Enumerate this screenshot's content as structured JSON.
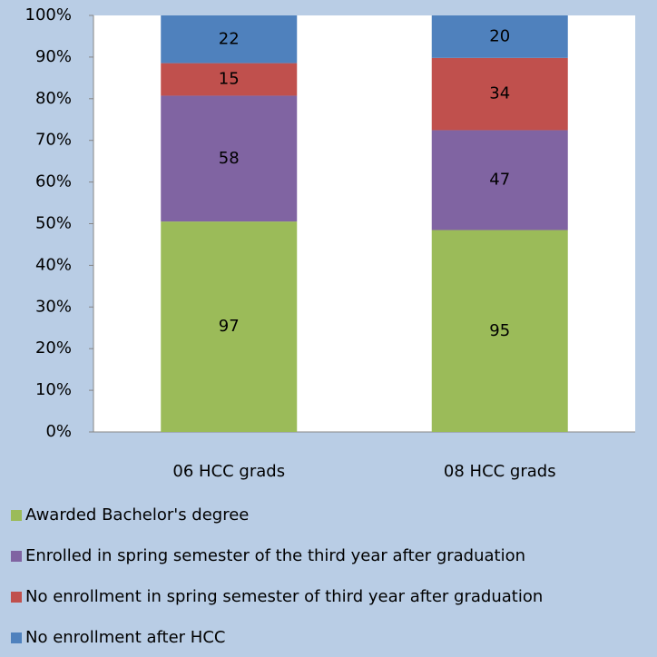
{
  "chart_data": {
    "type": "bar",
    "stacking": "percent",
    "categories": [
      "06 HCC grads",
      "08 HCC grads"
    ],
    "series": [
      {
        "name": "Awarded Bachelor's degree",
        "color": "#9bbb59",
        "values": [
          97,
          95
        ]
      },
      {
        "name": "Enrolled in spring semester of the third year after graduation",
        "color": "#8064a2",
        "values": [
          58,
          47
        ]
      },
      {
        "name": "No enrollment in spring semester of third year after graduation",
        "color": "#c0504d",
        "values": [
          15,
          34
        ]
      },
      {
        "name": "No enrollment after HCC",
        "color": "#4f81bd",
        "values": [
          22,
          20
        ]
      }
    ],
    "ylim": [
      0,
      100
    ],
    "yticks": [
      {
        "value": 0,
        "label": "0%"
      },
      {
        "value": 10,
        "label": "10%"
      },
      {
        "value": 20,
        "label": "20%"
      },
      {
        "value": 30,
        "label": "30%"
      },
      {
        "value": 40,
        "label": "40%"
      },
      {
        "value": 50,
        "label": "50%"
      },
      {
        "value": 60,
        "label": "60%"
      },
      {
        "value": 70,
        "label": "70%"
      },
      {
        "value": 80,
        "label": "80%"
      },
      {
        "value": 90,
        "label": "90%"
      },
      {
        "value": 100,
        "label": "100%"
      }
    ],
    "grid": false,
    "legend": "bottom"
  }
}
